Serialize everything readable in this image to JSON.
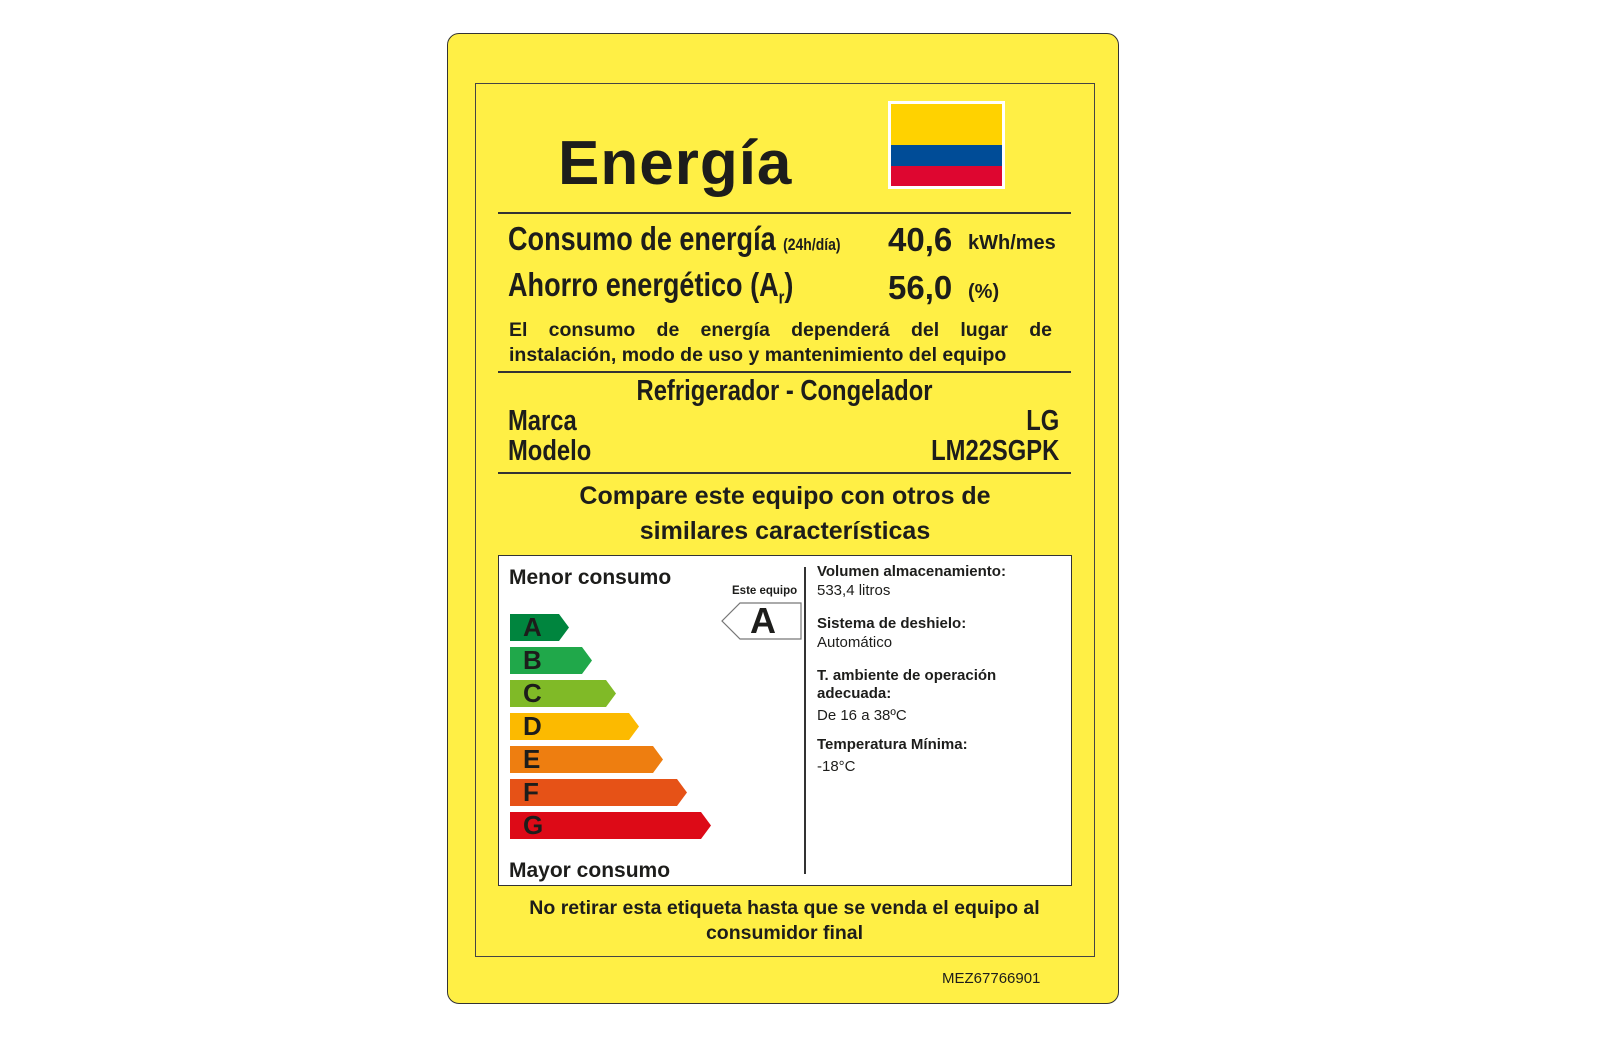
{
  "title": "Energía",
  "flag_colors": [
    "#FFD200",
    "#004C97",
    "#DE0630"
  ],
  "consumption": {
    "label": "Consumo de energía",
    "qualifier": "(24h/día)",
    "value": "40,6",
    "unit": "kWh/mes"
  },
  "savings": {
    "label": "Ahorro energético (A",
    "subscript": "r",
    "label_end": ")",
    "value": "56,0",
    "unit": "(%)"
  },
  "disclaimer": "El consumo de energía dependerá del lugar de instalación, modo de uso y mantenimiento del equipo",
  "product_type": "Refrigerador - Congelador",
  "brand": {
    "label": "Marca",
    "value": "LG"
  },
  "model": {
    "label": "Modelo",
    "value": "LM22SGPK"
  },
  "compare": "Compare este equipo con otros de similares características",
  "scale": {
    "top_label": "Menor consumo",
    "bottom_label": "Mayor consumo",
    "classes": [
      {
        "letter": "A",
        "color": "#00853E"
      },
      {
        "letter": "B",
        "color": "#20A84A"
      },
      {
        "letter": "C",
        "color": "#80BA27"
      },
      {
        "letter": "D",
        "color": "#FCBA00"
      },
      {
        "letter": "E",
        "color": "#EE7E10"
      },
      {
        "letter": "F",
        "color": "#E65217"
      },
      {
        "letter": "G",
        "color": "#DD0A17"
      }
    ],
    "indicator_label": "Este equipo",
    "rating": "A"
  },
  "specs": [
    {
      "label": "Volumen almacenamiento:",
      "value": "533,4 litros"
    },
    {
      "label": "Sistema de deshielo:",
      "value": "Automático"
    },
    {
      "label": "T. ambiente de operación adecuada:",
      "value": "De 16 a 38ºC"
    },
    {
      "label": "Temperatura Mínima:",
      "value": "-18°C"
    }
  ],
  "footer_notice": "No retirar esta etiqueta hasta que se venda el equipo al consumidor final",
  "code": "MEZ67766901"
}
